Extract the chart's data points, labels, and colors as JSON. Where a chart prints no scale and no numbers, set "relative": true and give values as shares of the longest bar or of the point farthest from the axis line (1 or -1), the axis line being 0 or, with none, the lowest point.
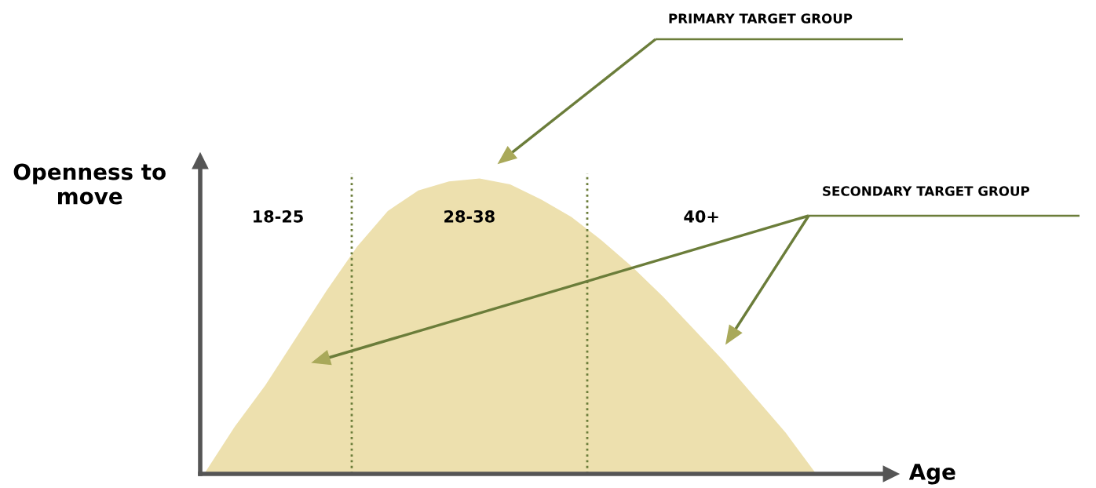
{
  "chart_data": {
    "type": "area",
    "relative": true,
    "xlabel": "Age",
    "ylabel": "Openness to\nmove",
    "categories": [
      null,
      null,
      null,
      null,
      null,
      null,
      null,
      null,
      null,
      null,
      null,
      null,
      null,
      null,
      null,
      null,
      null,
      null,
      null,
      null,
      null
    ],
    "series": [
      {
        "color": "#ede0ae",
        "values": [
          0,
          0.16,
          0.3,
          0.46,
          0.62,
          0.77,
          0.89,
          0.96,
          0.99,
          1,
          0.98,
          0.93,
          0.87,
          0.79,
          0.7,
          0.6,
          0.49,
          0.38,
          0.26,
          0.14,
          0
        ]
      }
    ],
    "annotations": [
      "18-25",
      "28-38",
      "40+",
      "PRIMARY TARGET GROUP",
      "SECONDARY TARGET GROUP"
    ]
  }
}
